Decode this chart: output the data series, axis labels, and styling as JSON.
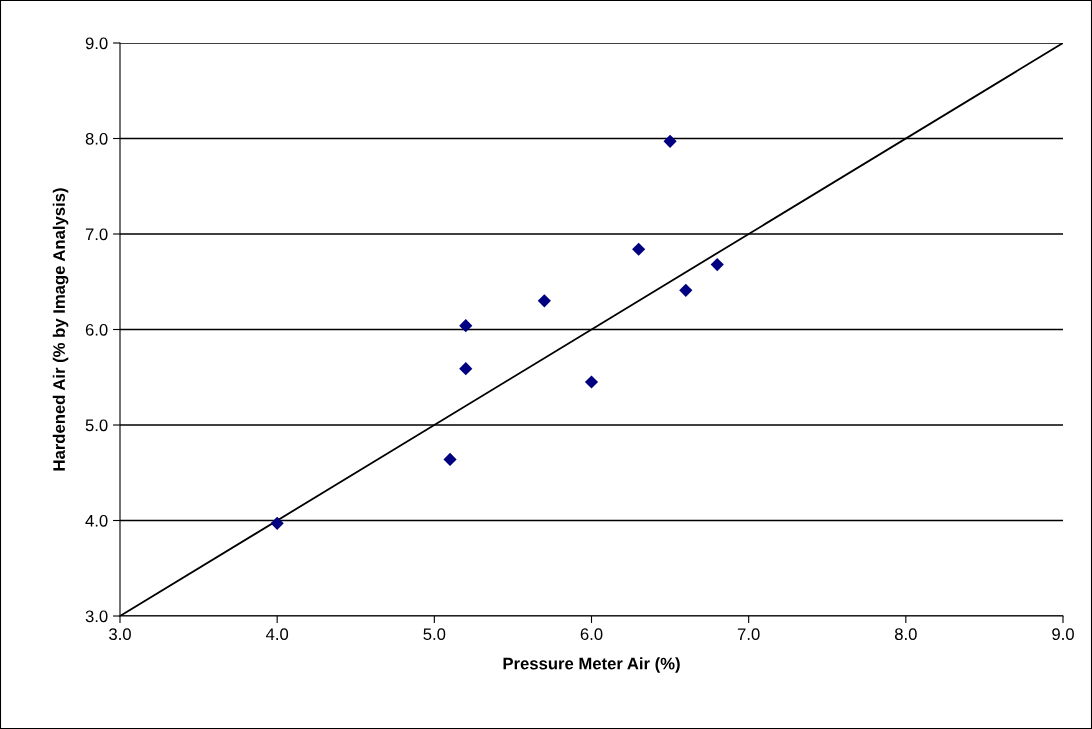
{
  "chart_data": {
    "type": "scatter",
    "xlabel": "Pressure Meter Air (%)",
    "ylabel": "Hardened Air (% by Image Analysis)",
    "xlim": [
      3.0,
      9.0
    ],
    "ylim": [
      3.0,
      9.0
    ],
    "xticks": [
      {
        "value": 3,
        "label": "3.0"
      },
      {
        "value": 4,
        "label": "4.0"
      },
      {
        "value": 5,
        "label": "5.0"
      },
      {
        "value": 6,
        "label": "6.0"
      },
      {
        "value": 7,
        "label": "7.0"
      },
      {
        "value": 8,
        "label": "8.0"
      },
      {
        "value": 9,
        "label": "9.0"
      }
    ],
    "yticks": [
      {
        "value": 3,
        "label": "3.0"
      },
      {
        "value": 4,
        "label": "4.0"
      },
      {
        "value": 5,
        "label": "5.0"
      },
      {
        "value": 6,
        "label": "6.0"
      },
      {
        "value": 7,
        "label": "7.0"
      },
      {
        "value": 8,
        "label": "8.0"
      },
      {
        "value": 9,
        "label": "9.0"
      }
    ],
    "grid": "y",
    "series": [
      {
        "marker": "diamond",
        "color": "#000080",
        "x": [
          4.0,
          5.1,
          5.2,
          5.2,
          5.7,
          6.0,
          6.3,
          6.5,
          6.6,
          6.8
        ],
        "values": [
          3.97,
          4.64,
          5.59,
          6.04,
          6.3,
          5.45,
          6.84,
          7.97,
          6.41,
          6.68
        ]
      },
      {
        "type": "line",
        "marker": "none",
        "color": "#000000",
        "x": [
          3.0,
          9.0
        ],
        "values": [
          3.0,
          9.0
        ]
      }
    ]
  }
}
